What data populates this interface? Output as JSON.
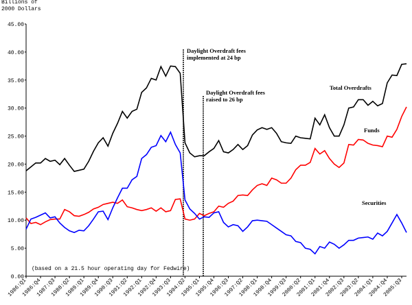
{
  "chart_data": {
    "type": "line",
    "ylabel_lines": [
      "Billions of",
      "2000 Dollars"
    ],
    "note": "(based on a 21.5 hour operating day for Fedwire)",
    "annotations": [
      {
        "lines": [
          "Daylight Overdraft fees",
          "implemented at 24 bp"
        ]
      },
      {
        "lines": [
          "Daylight Overdraft fees",
          "raised to 26 bp"
        ]
      }
    ],
    "categories": [
      "1986:Q1",
      null,
      null,
      "1986:Q4",
      null,
      null,
      "1987:Q3",
      null,
      null,
      "1988:Q2",
      null,
      null,
      "1989:Q1",
      null,
      null,
      "1989:Q4",
      null,
      null,
      "1990:Q3",
      null,
      null,
      "1991:Q2",
      null,
      null,
      "1992:Q1",
      null,
      null,
      "1992:Q4",
      null,
      null,
      "1993:Q3",
      null,
      null,
      "1994:Q2",
      null,
      null,
      "1995:Q1",
      null,
      null,
      "1995:Q4",
      null,
      null,
      "1996:Q3",
      null,
      null,
      "1997:Q2",
      null,
      null,
      "1998:Q1",
      null,
      null,
      "1998:Q4",
      null,
      null,
      "1999:Q3",
      null,
      null,
      "2000:Q2",
      null,
      null,
      "2001:Q1",
      null,
      null,
      "2001:Q4",
      null,
      null,
      "2002:Q3",
      null,
      null,
      "2003:Q2",
      null,
      null,
      "2004:Q1",
      null,
      null,
      "2004:Q4",
      null,
      null,
      "2005:Q3",
      null
    ],
    "series": [
      {
        "name": "Total Overdrafts",
        "color": "#000000",
        "values": [
          18.8,
          19.5,
          20.2,
          20.2,
          21,
          20.5,
          20.7,
          19.9,
          21,
          19.8,
          18.7,
          18.9,
          19.1,
          20.5,
          22.3,
          23.8,
          24.7,
          23.2,
          25.5,
          27.3,
          29.4,
          28.2,
          29.4,
          29.8,
          32.8,
          33.6,
          35.3,
          35,
          37.4,
          35.7,
          37.5,
          37.4,
          36.2,
          23.8,
          22,
          21.3,
          21.5,
          21.5,
          22.2,
          22.8,
          24.2,
          22.2,
          22,
          22.6,
          23.5,
          22.6,
          23.3,
          25.2,
          26.1,
          26.5,
          26.2,
          26.5,
          25.5,
          24,
          23.8,
          23.7,
          25,
          24.7,
          24.6,
          24.5,
          28.2,
          27,
          28.8,
          26.5,
          25,
          25,
          27,
          30,
          30.2,
          31.5,
          31.5,
          30.5,
          31.2,
          30.4,
          30.8,
          34.5,
          35.9,
          35.8,
          37.8,
          37.9
        ]
      },
      {
        "name": "Funds",
        "color": "#ff0000",
        "values": [
          10.4,
          9.4,
          9.6,
          9.2,
          9.7,
          10.1,
          10.2,
          10.2,
          11.9,
          11.5,
          10.8,
          10.7,
          11,
          11.4,
          12,
          12.3,
          12.8,
          13,
          13.2,
          13,
          13.6,
          12.4,
          12.2,
          11.9,
          11.7,
          11.9,
          12.2,
          11.6,
          12.2,
          11.5,
          11.7,
          13.7,
          13.8,
          10.2,
          10,
          10.2,
          11.2,
          10.8,
          11.2,
          11.5,
          12.5,
          12.3,
          13,
          13.4,
          14.4,
          14.5,
          14.4,
          15.4,
          16.2,
          16.5,
          16.2,
          17.5,
          17.2,
          16.6,
          16.6,
          17.5,
          19,
          19.8,
          19.8,
          20.3,
          22.8,
          21.8,
          22.4,
          21,
          20,
          19.4,
          20.2,
          23.5,
          23.4,
          24.4,
          24.3,
          23.7,
          23.4,
          23.3,
          23.1,
          25,
          24.8,
          26.2,
          28.5,
          30.2
        ]
      },
      {
        "name": "Securities",
        "color": "#0000ff",
        "values": [
          8.4,
          10.2,
          10.5,
          10.9,
          11.3,
          10.4,
          10.6,
          9.5,
          8.7,
          8.1,
          7.8,
          8.2,
          8.1,
          9,
          10.2,
          11.5,
          11.6,
          10.1,
          12.2,
          14,
          15.7,
          15.7,
          17.2,
          17.8,
          21,
          21.7,
          23,
          23.3,
          25.1,
          24,
          25.7,
          23.5,
          22,
          13.6,
          12,
          11.2,
          10.2,
          10.6,
          10.5,
          11.3,
          11.5,
          9.6,
          8.8,
          9.2,
          9,
          8,
          8.8,
          9.9,
          10,
          9.9,
          9.8,
          9.2,
          8.6,
          8,
          7.4,
          7.2,
          6.2,
          6,
          5,
          4.8,
          4,
          5.3,
          5,
          6.1,
          5.7,
          5,
          5.6,
          6.4,
          6.4,
          6.8,
          6.9,
          7,
          6.6,
          7.7,
          7.2,
          8,
          9.5,
          11,
          9.5,
          7.8
        ]
      }
    ],
    "ylim": [
      0,
      45
    ],
    "yticks": [
      {
        "value": 0,
        "label": "0.00"
      },
      {
        "value": 5,
        "label": "5.00"
      },
      {
        "value": 10,
        "label": "10.00"
      },
      {
        "value": 15,
        "label": "15.00"
      },
      {
        "value": 20,
        "label": "20.00"
      },
      {
        "value": 25,
        "label": "25.00"
      },
      {
        "value": 30,
        "label": "30.00"
      },
      {
        "value": 35,
        "label": "35.00"
      },
      {
        "value": 40,
        "label": "40.00"
      },
      {
        "value": 45,
        "label": "45.00"
      }
    ],
    "grid": false
  }
}
